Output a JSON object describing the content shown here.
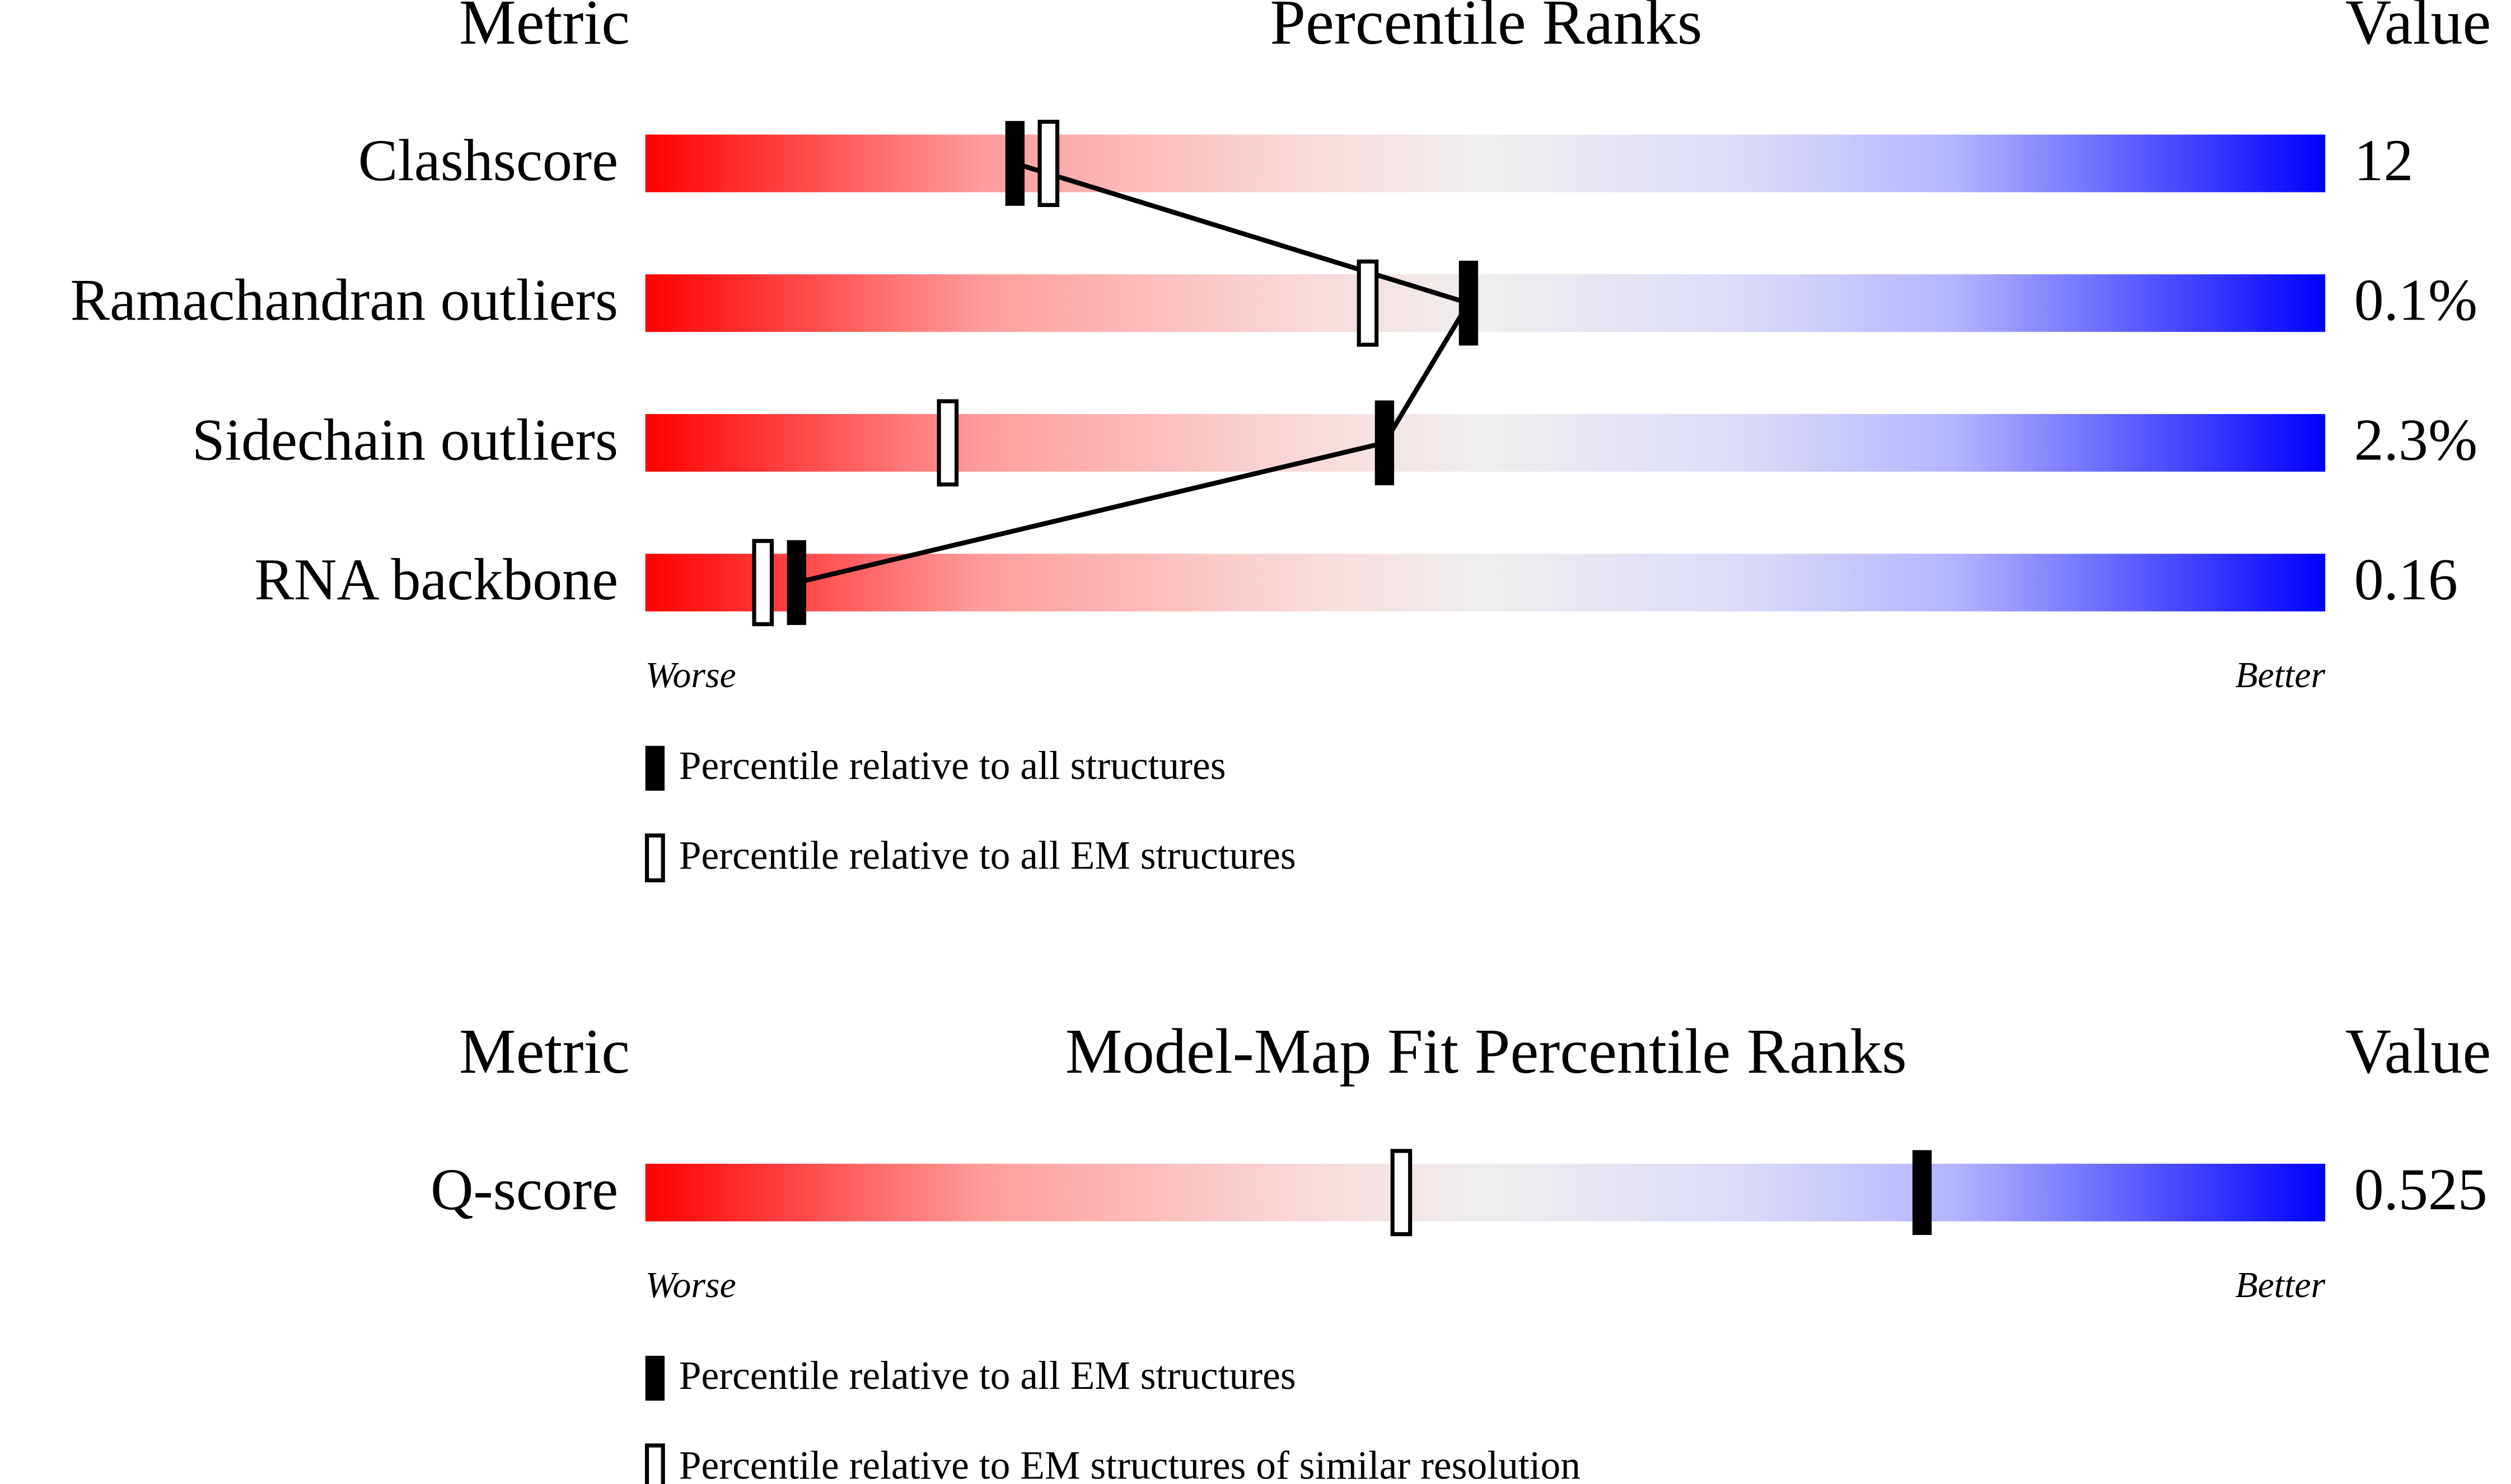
{
  "chart_data": [
    {
      "type": "percentile-slider",
      "metric_header": "Metric",
      "title": "Percentile Ranks",
      "value_header": "Value",
      "categories": [
        "Clashscore",
        "Ramachandran outliers",
        "Sidechain outliers",
        "RNA backbone"
      ],
      "metric_values": [
        "12",
        "0.1%",
        "2.3%",
        "0.16"
      ],
      "xlim": [
        0,
        100
      ],
      "worse_label": "Worse",
      "better_label": "Better",
      "series": [
        {
          "name": "Percentile relative to all structures",
          "color": "#000000",
          "fill": "solid",
          "connect": true,
          "values": [
            22,
            49,
            44,
            9
          ]
        },
        {
          "name": "Percentile relative to all EM structures",
          "color": "#000000",
          "fill": "hollow",
          "connect": false,
          "values": [
            24,
            43,
            18,
            7
          ]
        }
      ]
    },
    {
      "type": "percentile-slider",
      "metric_header": "Metric",
      "title": "Model-Map Fit Percentile Ranks",
      "value_header": "Value",
      "categories": [
        "Q-score"
      ],
      "metric_values": [
        "0.525"
      ],
      "xlim": [
        0,
        100
      ],
      "worse_label": "Worse",
      "better_label": "Better",
      "series": [
        {
          "name": "Percentile relative to all EM structures",
          "color": "#000000",
          "fill": "solid",
          "connect": true,
          "values": [
            76
          ]
        },
        {
          "name": "Percentile relative to EM structures of similar resolution",
          "color": "#000000",
          "fill": "hollow",
          "connect": false,
          "values": [
            45
          ]
        }
      ]
    }
  ]
}
